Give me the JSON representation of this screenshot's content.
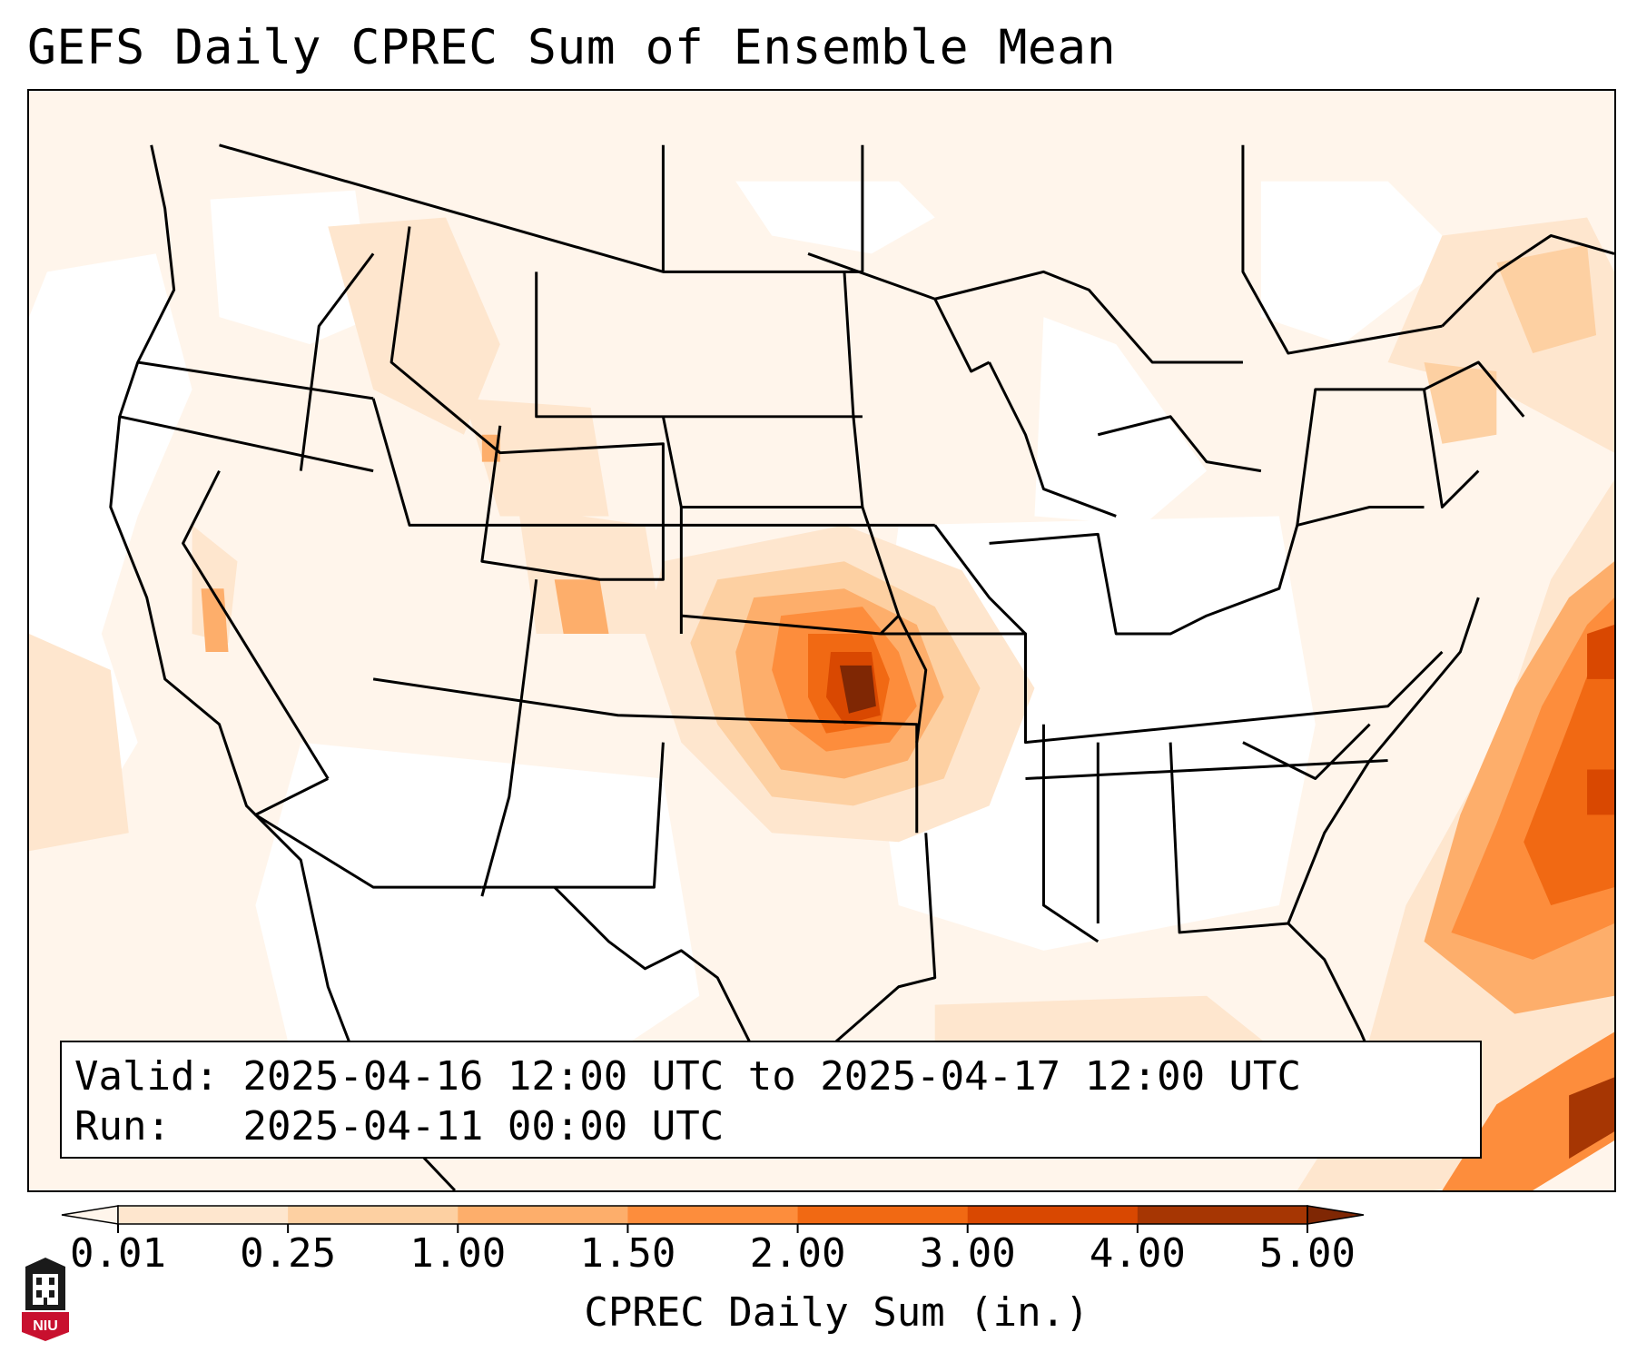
{
  "title": "GEFS Daily CPREC Sum of Ensemble Mean",
  "info": {
    "valid_label": "Valid:",
    "valid_text": "2025-04-16 12:00 UTC to 2025-04-17 12:00 UTC",
    "run_label": "Run:",
    "run_text": "2025-04-11 00:00 UTC"
  },
  "colorbar": {
    "label": "CPREC Daily Sum (in.)",
    "ticks": [
      "0.01",
      "0.25",
      "1.00",
      "1.50",
      "2.00",
      "3.00",
      "4.00",
      "5.00"
    ],
    "colors": [
      "#fff5eb",
      "#fee6ce",
      "#fdd0a2",
      "#fdae6b",
      "#fd8d3c",
      "#f16913",
      "#d94801",
      "#a63603",
      "#7f2704"
    ]
  },
  "logo": {
    "text": "NIU",
    "color": "#c8102e"
  }
}
